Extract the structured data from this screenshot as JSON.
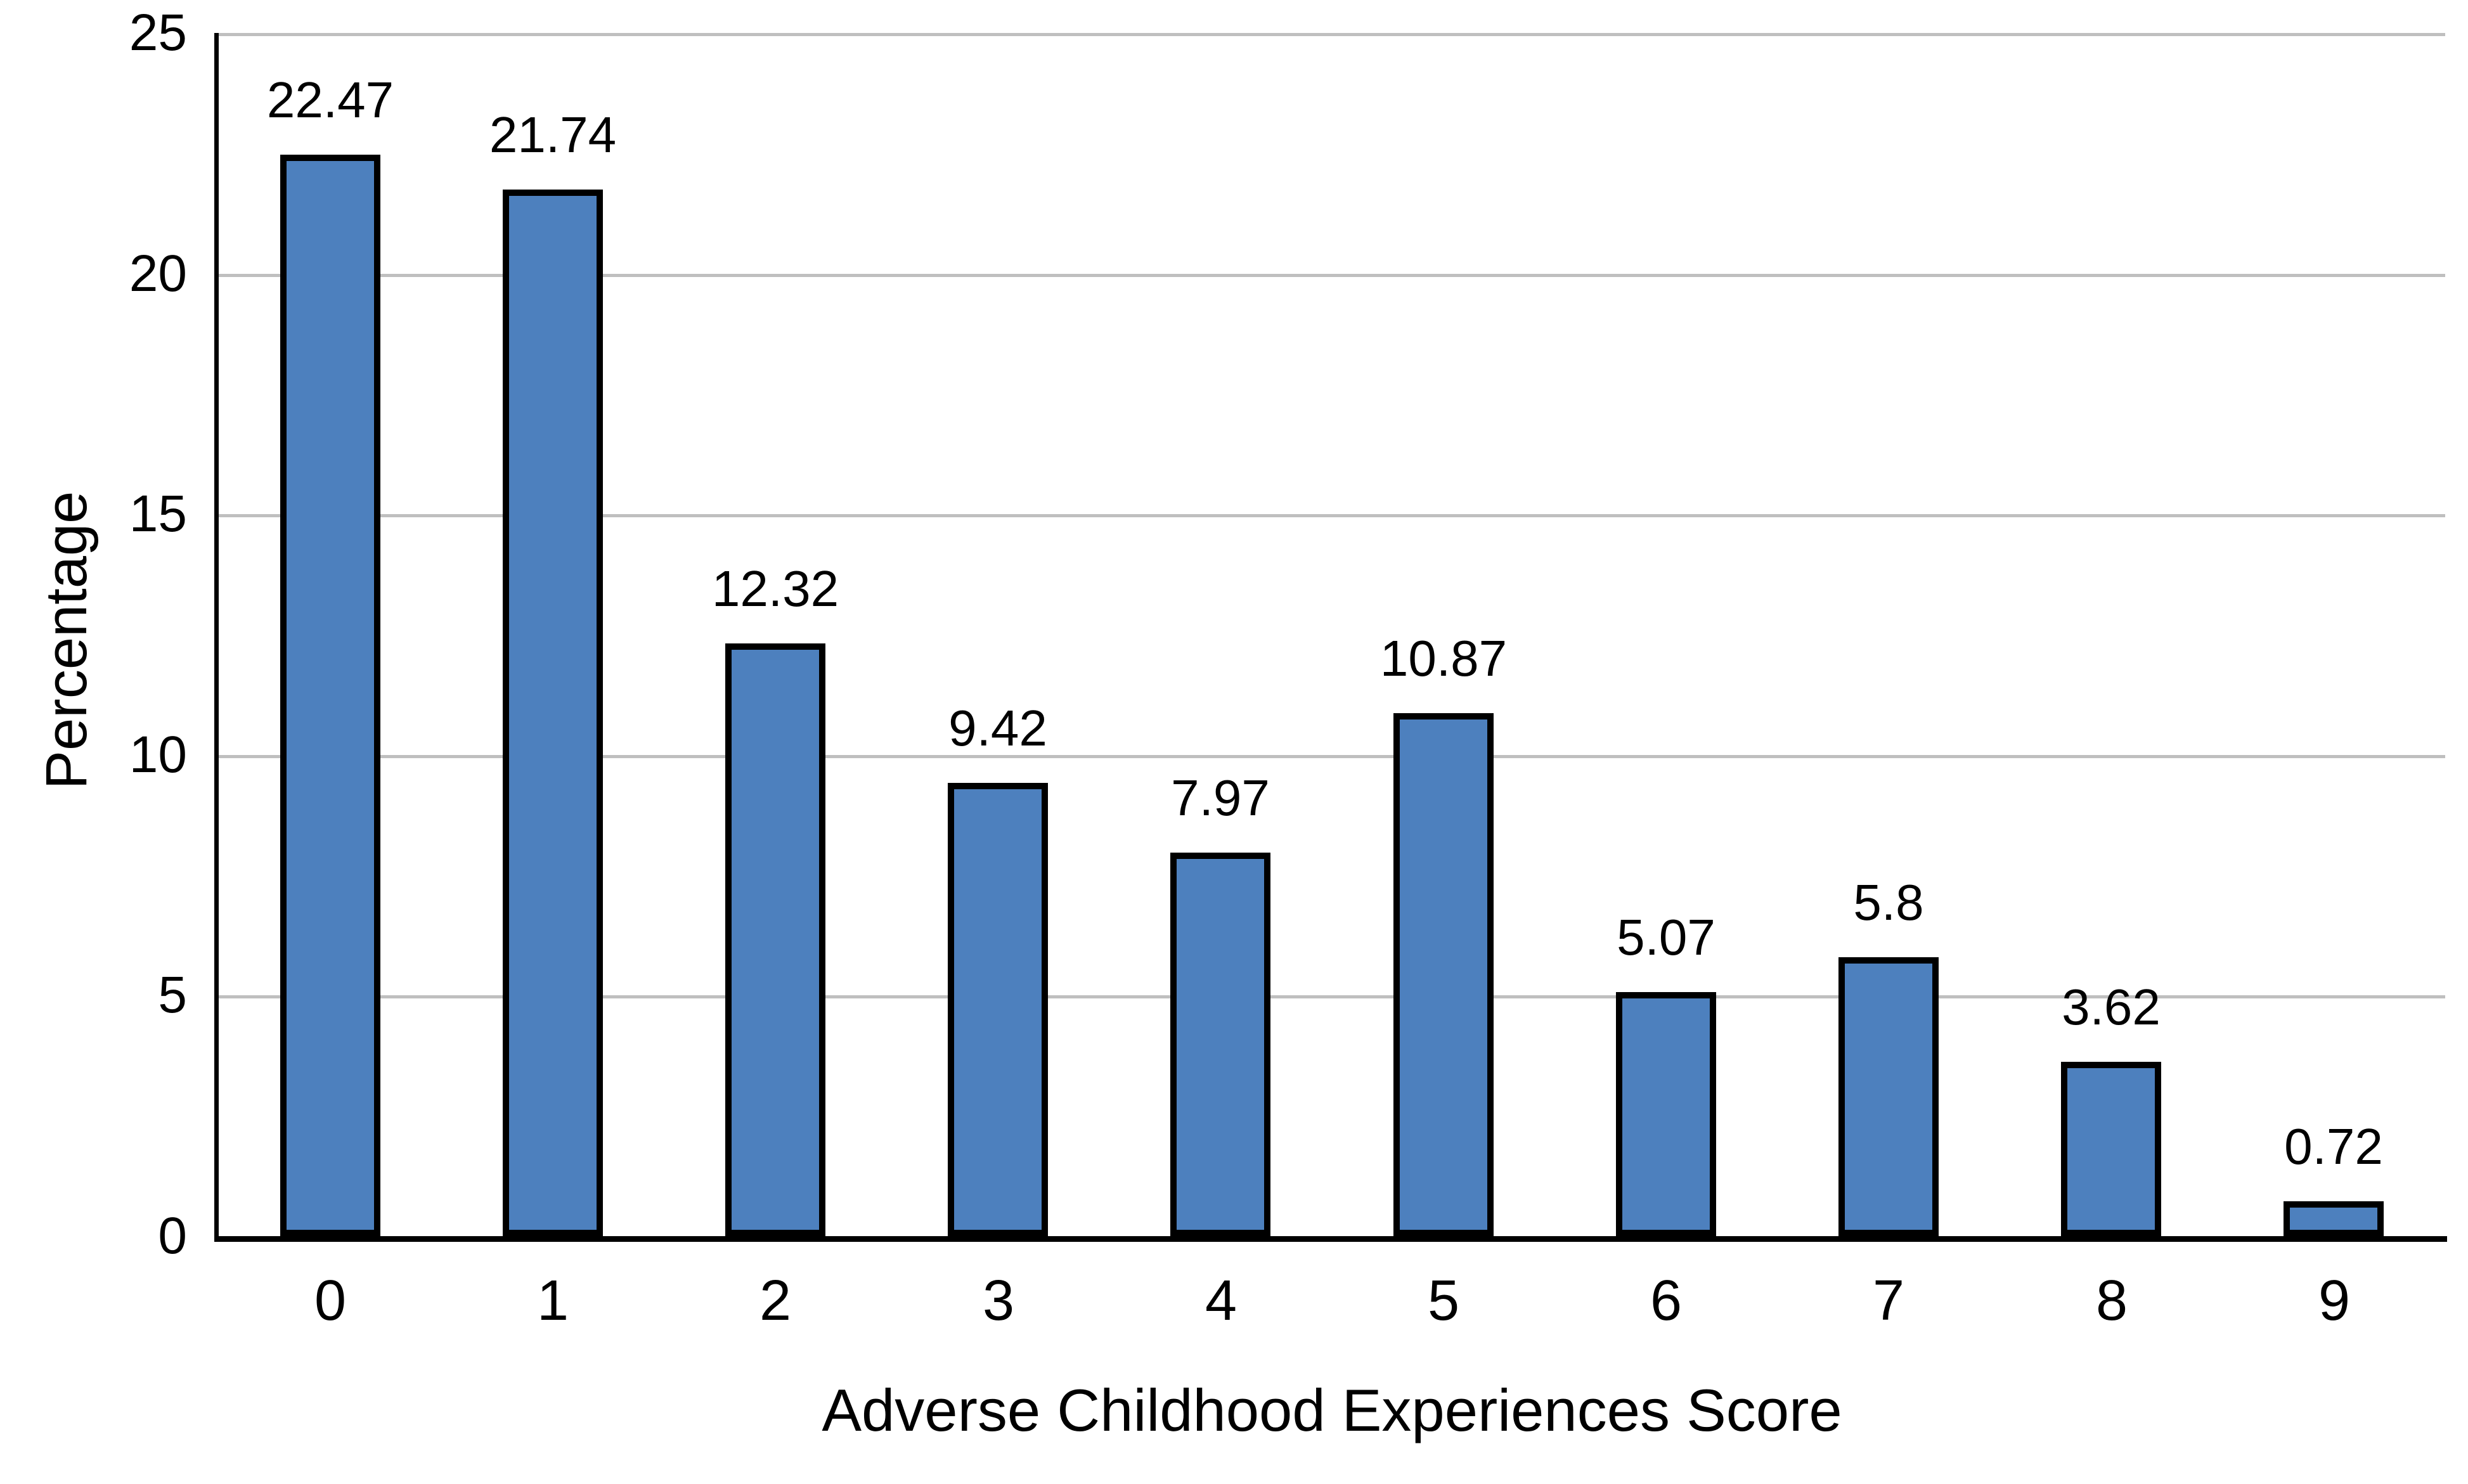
{
  "chart_data": {
    "type": "bar",
    "title": "",
    "xlabel": "Adverse Childhood Experiences Score",
    "ylabel": "Percentage",
    "categories": [
      "0",
      "1",
      "2",
      "3",
      "4",
      "5",
      "6",
      "7",
      "8",
      "9"
    ],
    "values": [
      22.47,
      21.74,
      12.32,
      9.42,
      7.97,
      10.87,
      5.07,
      5.8,
      3.62,
      0.72
    ],
    "value_labels": [
      "22.47",
      "21.74",
      "12.32",
      "9.42",
      "7.97",
      "10.87",
      "5.07",
      "5.8",
      "3.62",
      "0.72"
    ],
    "ylim": [
      0,
      25
    ],
    "yticks": [
      0,
      5,
      10,
      15,
      20,
      25
    ],
    "ytick_labels": [
      "0",
      "5",
      "10",
      "15",
      "20",
      "25"
    ],
    "grid": true,
    "legend": "none",
    "bar_fill_color": "#4D80BE",
    "bar_border_color": "#000000",
    "gridline_color": "#BFBFBF",
    "axis_line_color": "#000000",
    "text_color": "#000000",
    "background_color": "#FFFFFF"
  }
}
